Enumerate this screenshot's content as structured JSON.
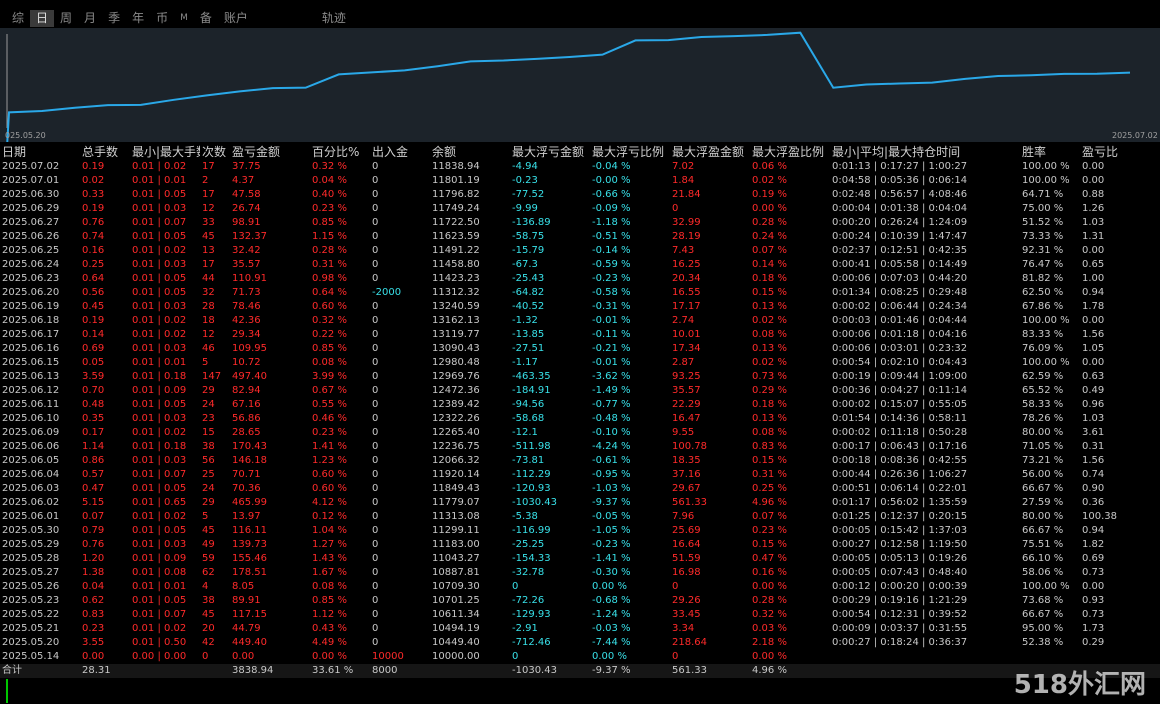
{
  "tabs": [
    "综",
    "日",
    "周",
    "月",
    "季",
    "年",
    "币",
    "M",
    "备",
    "账户",
    "轨迹"
  ],
  "active_tab": "日",
  "chart": {
    "start_label": "025.05.20",
    "end_label": "2025.07.02",
    "line_color": "#2aa8e8",
    "balance_series": [
      10449.4,
      10494.19,
      10611.34,
      10701.25,
      10709.3,
      10887.81,
      11043.27,
      11183.0,
      11299.11,
      11313.08,
      11779.07,
      11849.43,
      11920.14,
      12066.32,
      12236.75,
      12265.4,
      12322.26,
      12389.42,
      12472.36,
      12969.76,
      12980.48,
      13090.43,
      13119.77,
      13162.13,
      13240.59,
      11312.32,
      11423.23,
      11458.8,
      11491.22,
      11623.59,
      11722.5,
      11749.24,
      11796.82,
      11801.19,
      11838.94
    ]
  },
  "headers": [
    "日期",
    "总手数",
    "最小|最大手数",
    "次数",
    "盈亏金额",
    "百分比%",
    "出入金",
    "余额",
    "最大浮亏金额",
    "最大浮亏比例",
    "最大浮盈金额",
    "最大浮盈比例",
    "最小|平均|最大持仓时间",
    "胜率",
    "盈亏比"
  ],
  "rows": [
    [
      "2025.07.02",
      "0.19",
      "0.01 | 0.02",
      "17",
      "37.75",
      "0.32 %",
      "0",
      "11838.94",
      "-4.94",
      "-0.04 %",
      "7.02",
      "0.06 %",
      "0:01:13 | 0:17:27 | 1:00:27",
      "100.00 %",
      "0.00"
    ],
    [
      "2025.07.01",
      "0.02",
      "0.01 | 0.01",
      "2",
      "4.37",
      "0.04 %",
      "0",
      "11801.19",
      "-0.23",
      "-0.00 %",
      "1.84",
      "0.02 %",
      "0:04:58 | 0:05:36 | 0:06:14",
      "100.00 %",
      "0.00"
    ],
    [
      "2025.06.30",
      "0.33",
      "0.01 | 0.05",
      "17",
      "47.58",
      "0.40 %",
      "0",
      "11796.82",
      "-77.52",
      "-0.66 %",
      "21.84",
      "0.19 %",
      "0:02:48 | 0:56:57 | 4:08:46",
      "64.71 %",
      "0.88"
    ],
    [
      "2025.06.29",
      "0.19",
      "0.01 | 0.03",
      "12",
      "26.74",
      "0.23 %",
      "0",
      "11749.24",
      "-9.99",
      "-0.09 %",
      "0",
      "0.00 %",
      "0:00:04 | 0:01:38 | 0:04:04",
      "75.00 %",
      "1.26"
    ],
    [
      "2025.06.27",
      "0.76",
      "0.01 | 0.07",
      "33",
      "98.91",
      "0.85 %",
      "0",
      "11722.50",
      "-136.89",
      "-1.18 %",
      "32.99",
      "0.28 %",
      "0:00:20 | 0:26:24 | 1:24:09",
      "51.52 %",
      "1.03"
    ],
    [
      "2025.06.26",
      "0.74",
      "0.01 | 0.05",
      "45",
      "132.37",
      "1.15 %",
      "0",
      "11623.59",
      "-58.75",
      "-0.51 %",
      "28.19",
      "0.24 %",
      "0:00:24 | 0:10:39 | 1:47:47",
      "73.33 %",
      "1.31"
    ],
    [
      "2025.06.25",
      "0.16",
      "0.01 | 0.02",
      "13",
      "32.42",
      "0.28 %",
      "0",
      "11491.22",
      "-15.79",
      "-0.14 %",
      "7.43",
      "0.07 %",
      "0:02:37 | 0:12:51 | 0:42:35",
      "92.31 %",
      "0.00"
    ],
    [
      "2025.06.24",
      "0.25",
      "0.01 | 0.03",
      "17",
      "35.57",
      "0.31 %",
      "0",
      "11458.80",
      "-67.3",
      "-0.59 %",
      "16.25",
      "0.14 %",
      "0:00:41 | 0:05:58 | 0:14:49",
      "76.47 %",
      "0.65"
    ],
    [
      "2025.06.23",
      "0.64",
      "0.01 | 0.05",
      "44",
      "110.91",
      "0.98 %",
      "0",
      "11423.23",
      "-25.43",
      "-0.23 %",
      "20.34",
      "0.18 %",
      "0:00:06 | 0:07:03 | 0:44:20",
      "81.82 %",
      "1.00"
    ],
    [
      "2025.06.20",
      "0.56",
      "0.01 | 0.05",
      "32",
      "71.73",
      "0.64 %",
      "-2000",
      "11312.32",
      "-64.82",
      "-0.58 %",
      "16.55",
      "0.15 %",
      "0:01:34 | 0:08:25 | 0:29:48",
      "62.50 %",
      "0.94"
    ],
    [
      "2025.06.19",
      "0.45",
      "0.01 | 0.03",
      "28",
      "78.46",
      "0.60 %",
      "0",
      "13240.59",
      "-40.52",
      "-0.31 %",
      "17.17",
      "0.13 %",
      "0:00:02 | 0:06:44 | 0:24:34",
      "67.86 %",
      "1.78"
    ],
    [
      "2025.06.18",
      "0.19",
      "0.01 | 0.02",
      "18",
      "42.36",
      "0.32 %",
      "0",
      "13162.13",
      "-1.32",
      "-0.01 %",
      "2.74",
      "0.02 %",
      "0:00:03 | 0:01:46 | 0:04:44",
      "100.00 %",
      "0.00"
    ],
    [
      "2025.06.17",
      "0.14",
      "0.01 | 0.02",
      "12",
      "29.34",
      "0.22 %",
      "0",
      "13119.77",
      "-13.85",
      "-0.11 %",
      "10.01",
      "0.08 %",
      "0:00:06 | 0:01:18 | 0:04:16",
      "83.33 %",
      "1.56"
    ],
    [
      "2025.06.16",
      "0.69",
      "0.01 | 0.03",
      "46",
      "109.95",
      "0.85 %",
      "0",
      "13090.43",
      "-27.51",
      "-0.21 %",
      "17.34",
      "0.13 %",
      "0:00:06 | 0:03:01 | 0:23:32",
      "76.09 %",
      "1.05"
    ],
    [
      "2025.06.15",
      "0.05",
      "0.01 | 0.01",
      "5",
      "10.72",
      "0.08 %",
      "0",
      "12980.48",
      "-1.17",
      "-0.01 %",
      "2.87",
      "0.02 %",
      "0:00:54 | 0:02:10 | 0:04:43",
      "100.00 %",
      "0.00"
    ],
    [
      "2025.06.13",
      "3.59",
      "0.01 | 0.18",
      "147",
      "497.40",
      "3.99 %",
      "0",
      "12969.76",
      "-463.35",
      "-3.62 %",
      "93.25",
      "0.73 %",
      "0:00:19 | 0:09:44 | 1:09:00",
      "62.59 %",
      "0.63"
    ],
    [
      "2025.06.12",
      "0.70",
      "0.01 | 0.09",
      "29",
      "82.94",
      "0.67 %",
      "0",
      "12472.36",
      "-184.91",
      "-1.49 %",
      "35.57",
      "0.29 %",
      "0:00:36 | 0:04:27 | 0:11:14",
      "65.52 %",
      "0.49"
    ],
    [
      "2025.06.11",
      "0.48",
      "0.01 | 0.05",
      "24",
      "67.16",
      "0.55 %",
      "0",
      "12389.42",
      "-94.56",
      "-0.77 %",
      "22.29",
      "0.18 %",
      "0:00:02 | 0:15:07 | 0:55:05",
      "58.33 %",
      "0.96"
    ],
    [
      "2025.06.10",
      "0.35",
      "0.01 | 0.03",
      "23",
      "56.86",
      "0.46 %",
      "0",
      "12322.26",
      "-58.68",
      "-0.48 %",
      "16.47",
      "0.13 %",
      "0:01:54 | 0:14:36 | 0:58:11",
      "78.26 %",
      "1.03"
    ],
    [
      "2025.06.09",
      "0.17",
      "0.01 | 0.02",
      "15",
      "28.65",
      "0.23 %",
      "0",
      "12265.40",
      "-12.1",
      "-0.10 %",
      "9.55",
      "0.08 %",
      "0:00:02 | 0:11:18 | 0:50:28",
      "80.00 %",
      "3.61"
    ],
    [
      "2025.06.06",
      "1.14",
      "0.01 | 0.18",
      "38",
      "170.43",
      "1.41 %",
      "0",
      "12236.75",
      "-511.98",
      "-4.24 %",
      "100.78",
      "0.83 %",
      "0:00:17 | 0:06:43 | 0:17:16",
      "71.05 %",
      "0.31"
    ],
    [
      "2025.06.05",
      "0.86",
      "0.01 | 0.03",
      "56",
      "146.18",
      "1.23 %",
      "0",
      "12066.32",
      "-73.81",
      "-0.61 %",
      "18.35",
      "0.15 %",
      "0:00:18 | 0:08:36 | 0:42:55",
      "73.21 %",
      "1.56"
    ],
    [
      "2025.06.04",
      "0.57",
      "0.01 | 0.07",
      "25",
      "70.71",
      "0.60 %",
      "0",
      "11920.14",
      "-112.29",
      "-0.95 %",
      "37.16",
      "0.31 %",
      "0:00:44 | 0:26:36 | 1:06:27",
      "56.00 %",
      "0.74"
    ],
    [
      "2025.06.03",
      "0.47",
      "0.01 | 0.05",
      "24",
      "70.36",
      "0.60 %",
      "0",
      "11849.43",
      "-120.93",
      "-1.03 %",
      "29.67",
      "0.25 %",
      "0:00:51 | 0:06:14 | 0:22:01",
      "66.67 %",
      "0.90"
    ],
    [
      "2025.06.02",
      "5.15",
      "0.01 | 0.65",
      "29",
      "465.99",
      "4.12 %",
      "0",
      "11779.07",
      "-1030.43",
      "-9.37 %",
      "561.33",
      "4.96 %",
      "0:01:17 | 0:56:02 | 1:35:59",
      "27.59 %",
      "0.36"
    ],
    [
      "2025.06.01",
      "0.07",
      "0.01 | 0.02",
      "5",
      "13.97",
      "0.12 %",
      "0",
      "11313.08",
      "-5.38",
      "-0.05 %",
      "7.96",
      "0.07 %",
      "0:01:25 | 0:12:37 | 0:20:15",
      "80.00 %",
      "100.38"
    ],
    [
      "2025.05.30",
      "0.79",
      "0.01 | 0.05",
      "45",
      "116.11",
      "1.04 %",
      "0",
      "11299.11",
      "-116.99",
      "-1.05 %",
      "25.69",
      "0.23 %",
      "0:00:05 | 0:15:42 | 1:37:03",
      "66.67 %",
      "0.94"
    ],
    [
      "2025.05.29",
      "0.76",
      "0.01 | 0.03",
      "49",
      "139.73",
      "1.27 %",
      "0",
      "11183.00",
      "-25.25",
      "-0.23 %",
      "16.64",
      "0.15 %",
      "0:00:27 | 0:12:58 | 1:19:50",
      "75.51 %",
      "1.82"
    ],
    [
      "2025.05.28",
      "1.20",
      "0.01 | 0.09",
      "59",
      "155.46",
      "1.43 %",
      "0",
      "11043.27",
      "-154.33",
      "-1.41 %",
      "51.59",
      "0.47 %",
      "0:00:05 | 0:05:13 | 0:19:26",
      "66.10 %",
      "0.69"
    ],
    [
      "2025.05.27",
      "1.38",
      "0.01 | 0.08",
      "62",
      "178.51",
      "1.67 %",
      "0",
      "10887.81",
      "-32.78",
      "-0.30 %",
      "16.98",
      "0.16 %",
      "0:00:05 | 0:07:43 | 0:48:40",
      "58.06 %",
      "0.73"
    ],
    [
      "2025.05.26",
      "0.04",
      "0.01 | 0.01",
      "4",
      "8.05",
      "0.08 %",
      "0",
      "10709.30",
      "0",
      "0.00 %",
      "0",
      "0.00 %",
      "0:00:12 | 0:00:20 | 0:00:39",
      "100.00 %",
      "0.00"
    ],
    [
      "2025.05.23",
      "0.62",
      "0.01 | 0.05",
      "38",
      "89.91",
      "0.85 %",
      "0",
      "10701.25",
      "-72.26",
      "-0.68 %",
      "29.26",
      "0.28 %",
      "0:00:29 | 0:19:16 | 1:21:29",
      "73.68 %",
      "0.93"
    ],
    [
      "2025.05.22",
      "0.83",
      "0.01 | 0.07",
      "45",
      "117.15",
      "1.12 %",
      "0",
      "10611.34",
      "-129.93",
      "-1.24 %",
      "33.45",
      "0.32 %",
      "0:00:54 | 0:12:31 | 0:39:52",
      "66.67 %",
      "0.73"
    ],
    [
      "2025.05.21",
      "0.23",
      "0.01 | 0.02",
      "20",
      "44.79",
      "0.43 %",
      "0",
      "10494.19",
      "-2.91",
      "-0.03 %",
      "3.34",
      "0.03 %",
      "0:00:09 | 0:03:37 | 0:31:55",
      "95.00 %",
      "1.73"
    ],
    [
      "2025.05.20",
      "3.55",
      "0.01 | 0.50",
      "42",
      "449.40",
      "4.49 %",
      "0",
      "10449.40",
      "-712.46",
      "-7.44 %",
      "218.64",
      "2.18 %",
      "0:00:27 | 0:18:24 | 0:36:37",
      "52.38 %",
      "0.29"
    ],
    [
      "2025.05.14",
      "0.00",
      "0.00 | 0.00",
      "0",
      "0.00",
      "0.00 %",
      "10000",
      "10000.00",
      "0",
      "0.00 %",
      "0",
      "0.00 %",
      "",
      "",
      ""
    ]
  ],
  "total": [
    "合计",
    "28.31",
    "",
    "",
    "3838.94",
    "33.61 %",
    "8000",
    "",
    "-1030.43",
    "-9.37 %",
    "561.33",
    "4.96 %",
    "",
    "",
    ""
  ],
  "watermark": "518外汇网"
}
